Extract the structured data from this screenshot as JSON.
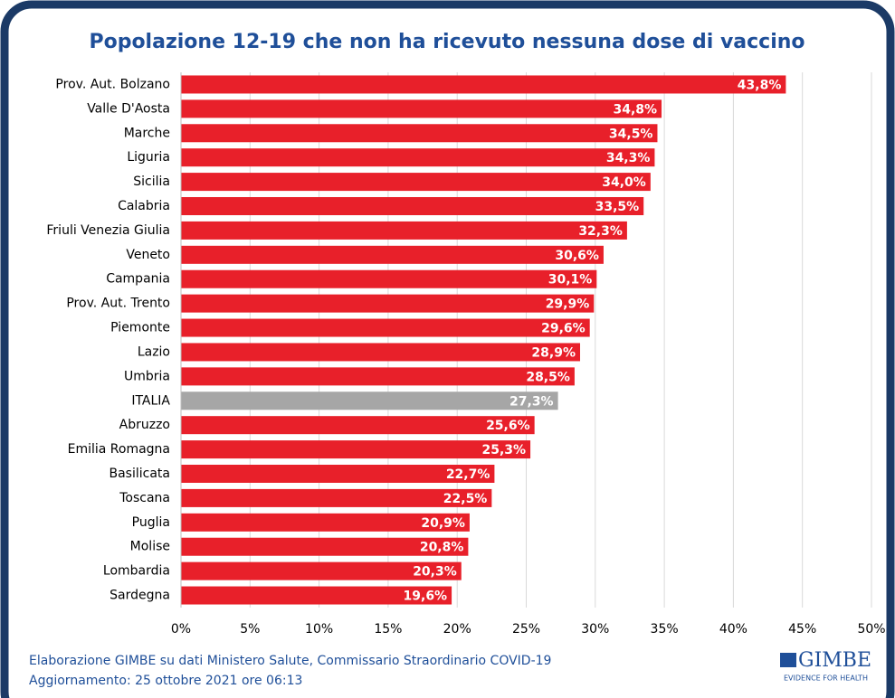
{
  "chart_data": {
    "type": "bar",
    "orientation": "horizontal",
    "title": "Popolazione 12-19 che non ha ricevuto nessuna dose di vaccino",
    "categories": [
      "Prov. Aut. Bolzano",
      "Valle D'Aosta",
      "Marche",
      "Liguria",
      "Sicilia",
      "Calabria",
      "Friuli Venezia Giulia",
      "Veneto",
      "Campania",
      "Prov. Aut. Trento",
      "Piemonte",
      "Lazio",
      "Umbria",
      "ITALIA",
      "Abruzzo",
      "Emilia Romagna",
      "Basilicata",
      "Toscana",
      "Puglia",
      "Molise",
      "Lombardia",
      "Sardegna"
    ],
    "values": [
      43.8,
      34.8,
      34.5,
      34.3,
      34.0,
      33.5,
      32.3,
      30.6,
      30.1,
      29.9,
      29.6,
      28.9,
      28.5,
      27.3,
      25.6,
      25.3,
      22.7,
      22.5,
      20.9,
      20.8,
      20.3,
      19.6
    ],
    "value_labels": [
      "43,8%",
      "34,8%",
      "34,5%",
      "34,3%",
      "34,0%",
      "33,5%",
      "32,3%",
      "30,6%",
      "30,1%",
      "29,9%",
      "29,6%",
      "28,9%",
      "28,5%",
      "27,3%",
      "25,6%",
      "25,3%",
      "22,7%",
      "22,5%",
      "20,9%",
      "20,8%",
      "20,3%",
      "19,6%"
    ],
    "colors": [
      "#e8202a",
      "#e8202a",
      "#e8202a",
      "#e8202a",
      "#e8202a",
      "#e8202a",
      "#e8202a",
      "#e8202a",
      "#e8202a",
      "#e8202a",
      "#e8202a",
      "#e8202a",
      "#e8202a",
      "#a6a6a6",
      "#e8202a",
      "#e8202a",
      "#e8202a",
      "#e8202a",
      "#e8202a",
      "#e8202a",
      "#e8202a",
      "#e8202a"
    ],
    "xlim": [
      0,
      50
    ],
    "xticks": [
      {
        "value": 0,
        "label": "0%"
      },
      {
        "value": 5,
        "label": "5%"
      },
      {
        "value": 10,
        "label": "10%"
      },
      {
        "value": 15,
        "label": "15%"
      },
      {
        "value": 20,
        "label": "20%"
      },
      {
        "value": 25,
        "label": "25%"
      },
      {
        "value": 30,
        "label": "30%"
      },
      {
        "value": 35,
        "label": "35%"
      },
      {
        "value": 40,
        "label": "40%"
      },
      {
        "value": 45,
        "label": "45%"
      },
      {
        "value": 50,
        "label": "50%"
      }
    ],
    "grid": true,
    "source": "Elaborazione GIMBE su dati Ministero Salute, Commissario Straordinario COVID-19",
    "updated": "Aggiornamento: 25 ottobre 2021 ore 06:13",
    "logo": {
      "name": "GIMBE",
      "tagline": "EVIDENCE FOR HEALTH"
    }
  }
}
